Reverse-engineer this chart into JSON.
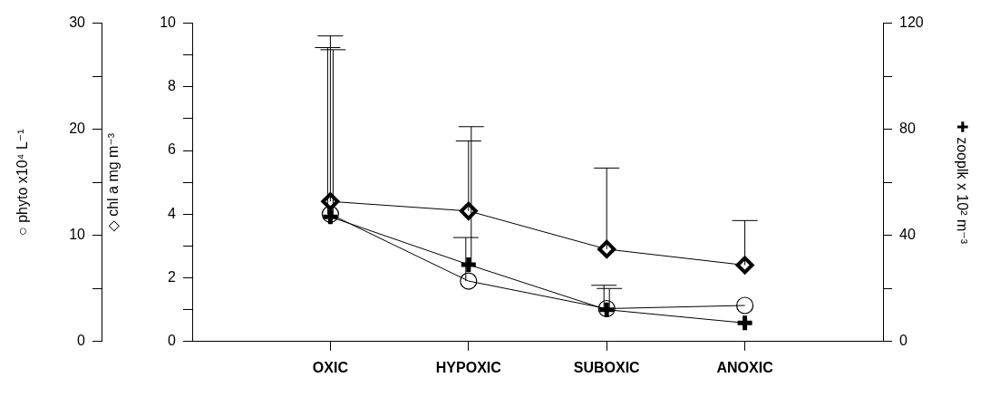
{
  "chart_data": {
    "type": "line",
    "categories": [
      "OXIC",
      "HYPOXIC",
      "SUBOXIC",
      "ANOXIC"
    ],
    "ylabel": "◇ chl a mg m⁻³",
    "y2label": "✚ zooplk x 10² m⁻³",
    "y3label": "○ phyto x10⁴ L⁻¹",
    "ylim": [
      0,
      10
    ],
    "yticks": [
      0,
      {
        "value": 1,
        "label": null
      },
      2,
      {
        "value": 3,
        "label": null
      },
      4,
      {
        "value": 5,
        "label": null
      },
      6,
      {
        "value": 7,
        "label": null
      },
      8,
      {
        "value": 9,
        "label": null
      },
      10
    ],
    "y2lim": [
      0,
      120
    ],
    "y2ticks": [
      0,
      {
        "value": 20,
        "label": null
      },
      40,
      {
        "value": 60,
        "label": null
      },
      80,
      {
        "value": 100,
        "label": null
      },
      120
    ],
    "y3lim": [
      0,
      30
    ],
    "y3ticks": [
      0,
      {
        "value": 5,
        "label": null
      },
      10,
      {
        "value": 15,
        "label": null
      },
      20,
      {
        "value": 25,
        "label": null
      },
      30
    ],
    "grid": false,
    "legend": false,
    "line_style": "solid",
    "series": [
      {
        "color": "#000000",
        "marker": "circle",
        "axis": "y3",
        "values": [
          12.0,
          5.7,
          3.1,
          3.4
        ],
        "errors": [
          [
            12.0,
            27.7
          ],
          [
            5.7,
            9.8
          ],
          [
            3.1,
            5.3
          ],
          null
        ]
      },
      {
        "color": "#000000",
        "marker": "diamond",
        "values": [
          4.4,
          4.1,
          2.9,
          2.4
        ],
        "errors": [
          [
            4.4,
            9.6
          ],
          [
            4.1,
            6.3
          ],
          [
            2.9,
            5.45
          ],
          [
            2.4,
            3.8
          ]
        ]
      },
      {
        "color": "#000000",
        "marker": "cross",
        "axis": "y2",
        "values": [
          47,
          29,
          12,
          7
        ],
        "errors": [
          [
            47,
            110
          ],
          [
            29,
            81
          ],
          [
            12,
            20
          ],
          null
        ]
      }
    ]
  }
}
